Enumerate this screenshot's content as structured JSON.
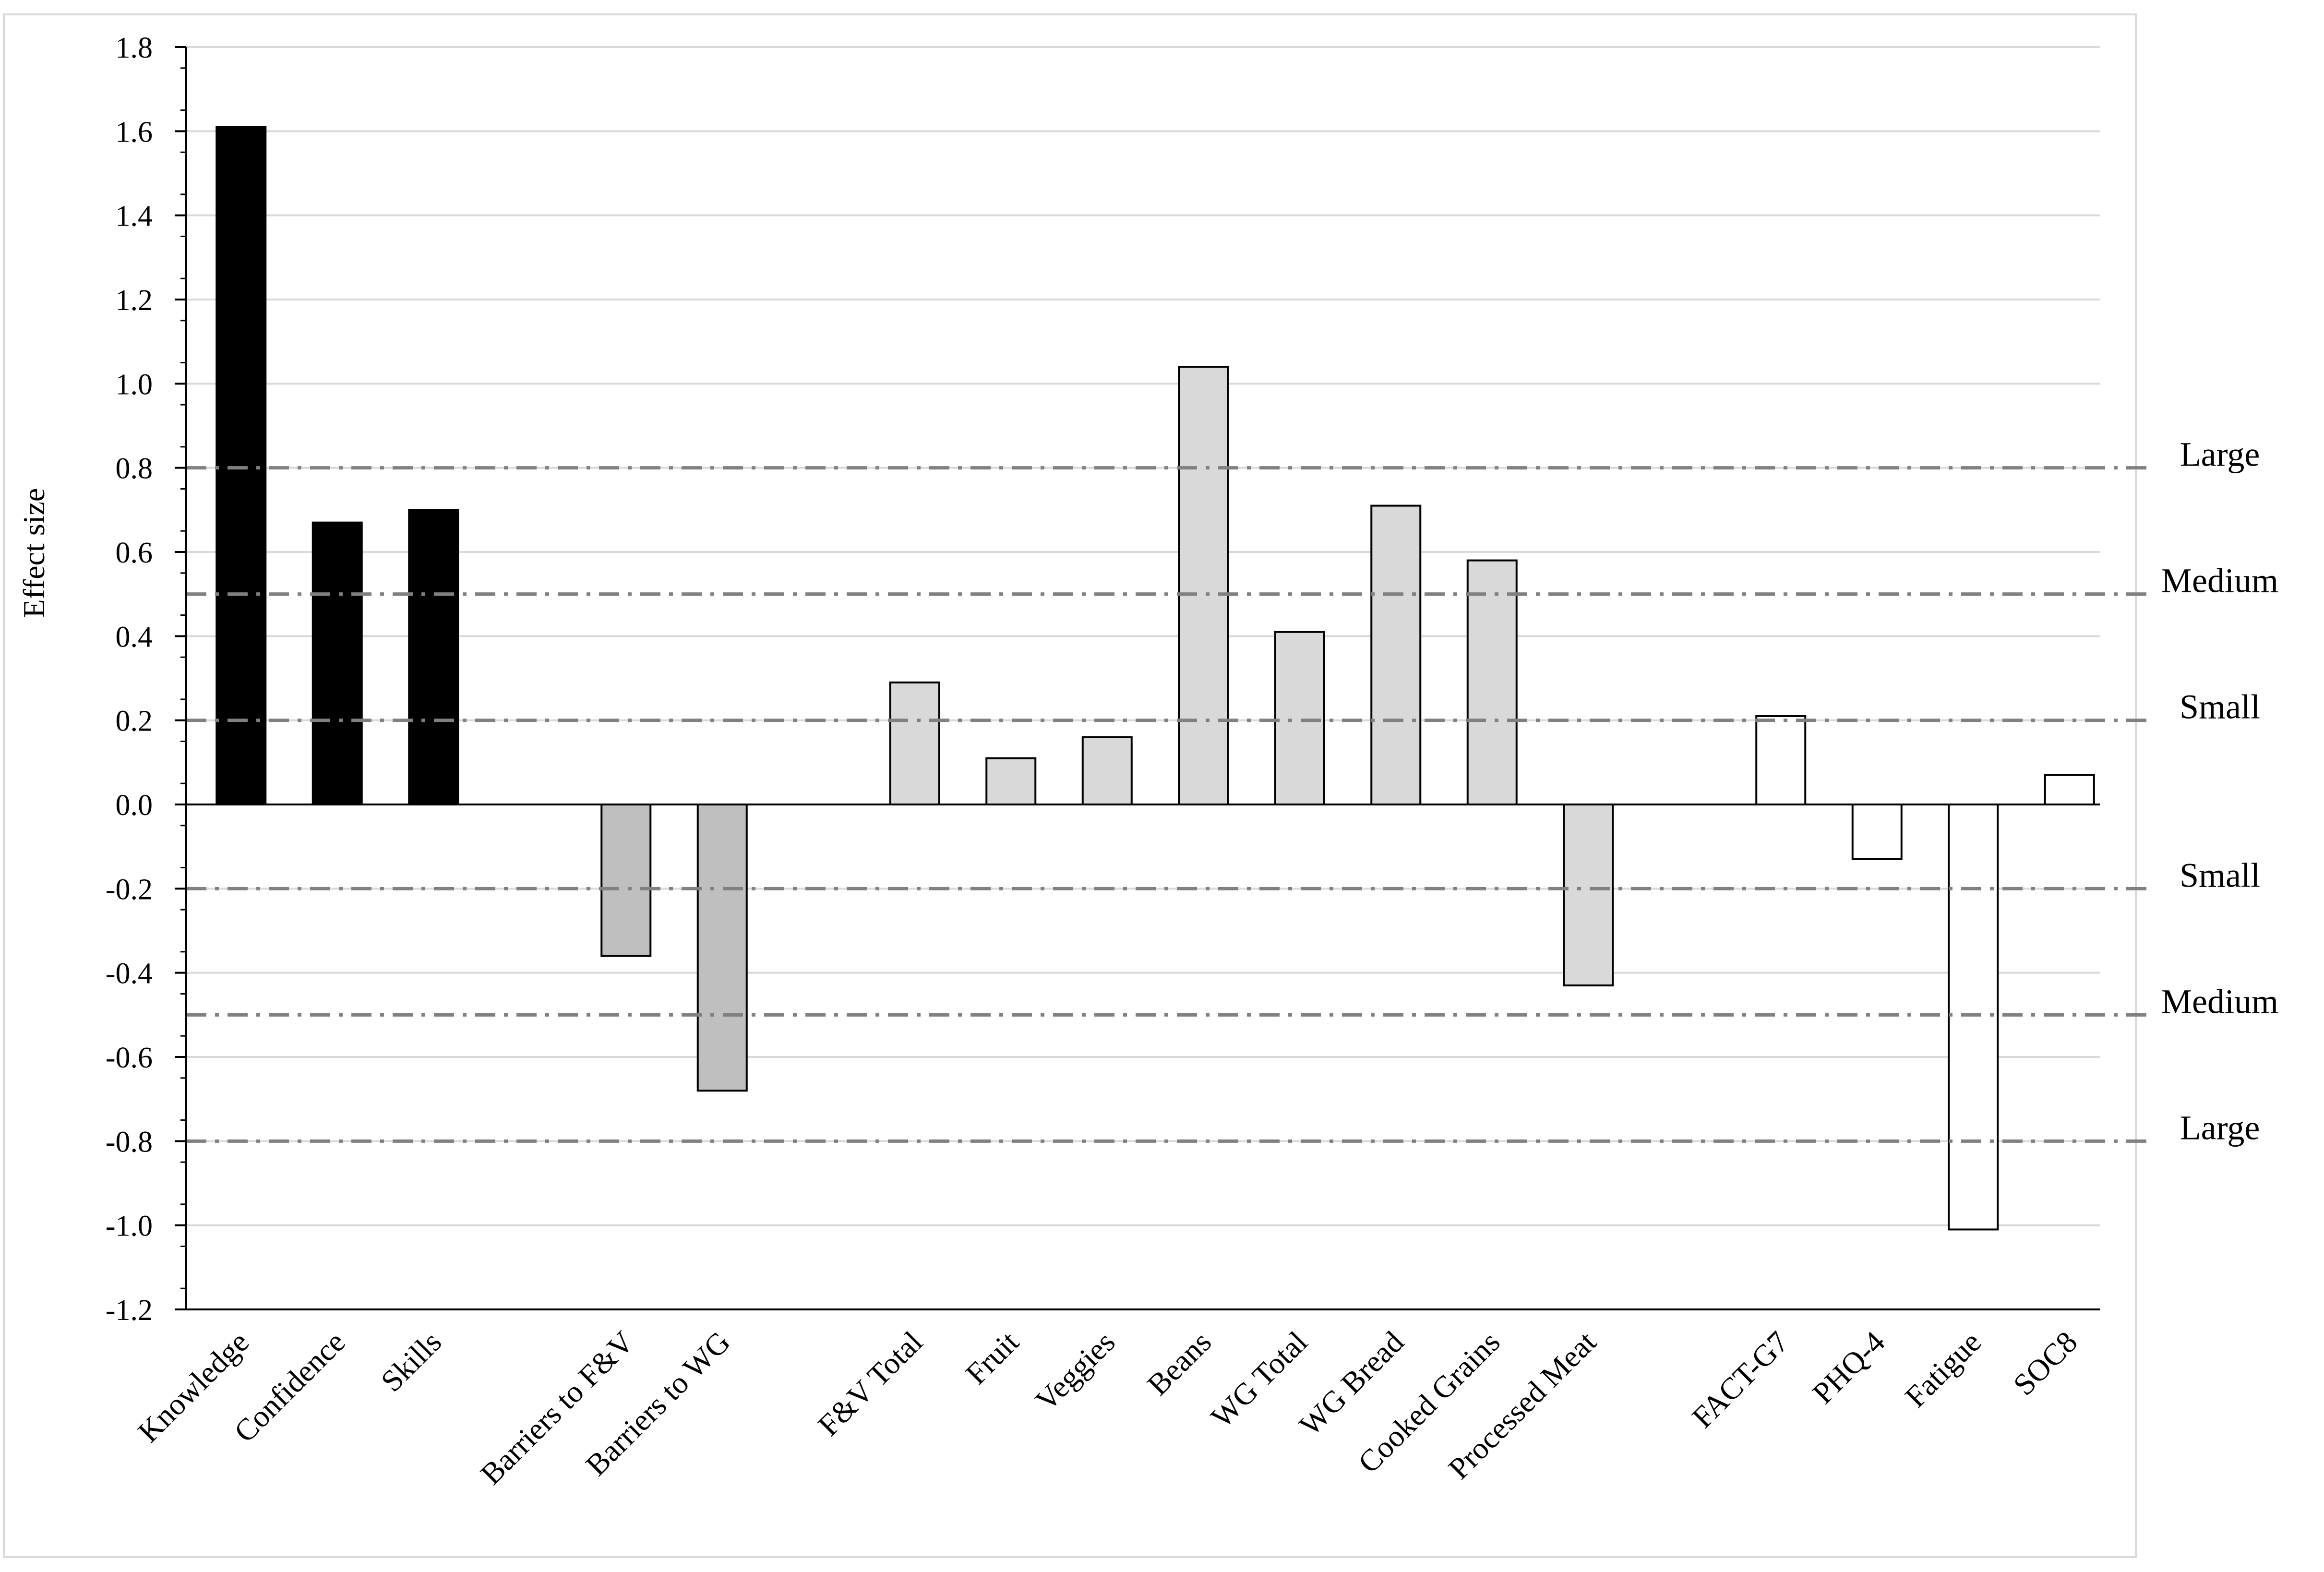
{
  "chart_data": {
    "type": "bar",
    "ylabel": "Effect size",
    "xlabel": "",
    "ylim": [
      -1.2,
      1.8
    ],
    "y_ticks": [
      "1.8",
      "1.6",
      "1.4",
      "1.2",
      "1.0",
      "0.8",
      "0.6",
      "0.4",
      "0.2",
      "0.0",
      "-0.2",
      "-0.4",
      "-0.6",
      "-0.8",
      "-1.0",
      "-1.2"
    ],
    "grid": true,
    "legend": "none",
    "categories": [
      "Knowledge",
      "Confidence",
      "Skills",
      "Barriers to F&V",
      "Barriers to WG",
      "F&V Total",
      "Fruit",
      "Veggies",
      "Beans",
      "WG Total",
      "WG Bread",
      "Cooked Grains",
      "Processed Meat",
      "FACT-G7",
      "PHQ-4",
      "Fatigue",
      "SOC8"
    ],
    "groups": [
      {
        "categories": [
          "Knowledge",
          "Confidence",
          "Skills"
        ],
        "values": [
          1.61,
          0.67,
          0.7
        ],
        "color": "#000000"
      },
      {
        "categories": [
          "Barriers to F&V",
          "Barriers to WG"
        ],
        "values": [
          -0.36,
          -0.68
        ],
        "color": "#bfbfbf"
      },
      {
        "categories": [
          "F&V Total",
          "Fruit",
          "Veggies",
          "Beans",
          "WG Total",
          "WG Bread",
          "Cooked Grains",
          "Processed Meat"
        ],
        "values": [
          0.29,
          0.11,
          0.16,
          1.04,
          0.41,
          0.71,
          0.58,
          -0.43
        ],
        "color": "#d9d9d9"
      },
      {
        "categories": [
          "FACT-G7",
          "PHQ-4",
          "Fatigue",
          "SOC8"
        ],
        "values": [
          0.21,
          -0.13,
          -1.01,
          0.07
        ],
        "color": "#ffffff"
      }
    ],
    "thresholds": [
      {
        "label": "Large",
        "value": 0.8
      },
      {
        "label": "Medium",
        "value": 0.5
      },
      {
        "label": "Small",
        "value": 0.2
      },
      {
        "label": "Small",
        "value": -0.2
      },
      {
        "label": "Medium",
        "value": -0.5
      },
      {
        "label": "Large",
        "value": -0.8
      }
    ],
    "threshold_line_color": "#808080"
  }
}
